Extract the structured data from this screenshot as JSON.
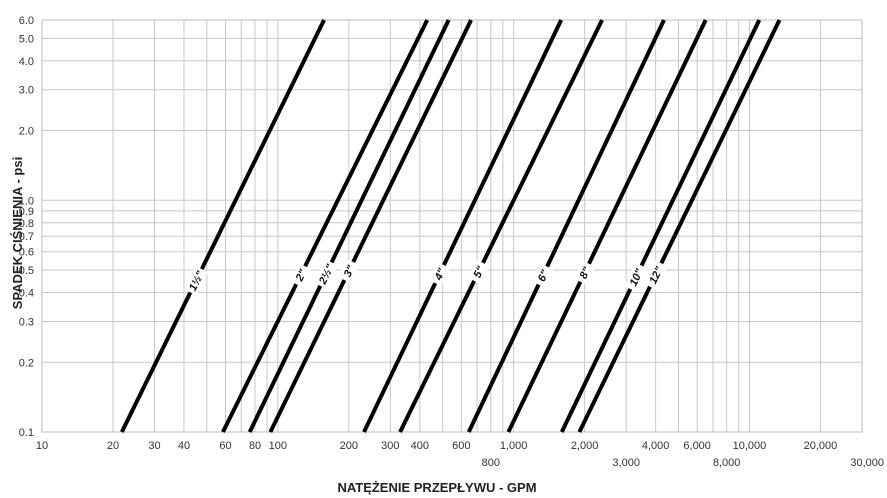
{
  "chart_data": {
    "type": "line",
    "title": "",
    "xlabel": "NATĘŻENIE PRZEPŁYWU - GPM",
    "ylabel": "SPADEK CIŚNIENIA - psi",
    "x_scale": "log",
    "y_scale": "log",
    "xlim": [
      10,
      30000
    ],
    "ylim": [
      0.1,
      6
    ],
    "grid": true,
    "legend": "none",
    "x_ticks_upper": [
      "10",
      "20",
      "30",
      "40",
      "60",
      "80",
      "100",
      "200",
      "300",
      "400",
      "600",
      "1,000",
      "2,000",
      "4,000",
      "6,000",
      "10,000",
      "20,000"
    ],
    "x_ticks_upper_values": [
      10,
      20,
      30,
      40,
      60,
      80,
      100,
      200,
      300,
      400,
      600,
      1000,
      2000,
      4000,
      6000,
      10000,
      20000
    ],
    "x_ticks_lower": [
      "800",
      "3,000",
      "8,000",
      "30,000"
    ],
    "x_ticks_lower_values": [
      800,
      3000,
      8000,
      30000
    ],
    "y_ticks": [
      "0.1",
      "0.2",
      "0.3",
      "0.4",
      "0.5",
      "0.6",
      "0.7",
      "0.8",
      "0.9",
      "1.0",
      "2.0",
      "3.0",
      "4.0",
      "5.0",
      "6.0"
    ],
    "y_ticks_values": [
      0.1,
      0.2,
      0.3,
      0.4,
      0.5,
      0.6,
      0.7,
      0.8,
      0.9,
      1.0,
      2.0,
      3.0,
      4.0,
      5.0,
      6.0
    ],
    "x_gridlines": [
      20,
      30,
      40,
      50,
      60,
      70,
      80,
      90,
      100,
      200,
      300,
      400,
      500,
      600,
      700,
      800,
      900,
      1000,
      2000,
      3000,
      4000,
      5000,
      6000,
      7000,
      8000,
      9000,
      10000,
      20000
    ],
    "y_gridlines": [
      0.2,
      0.3,
      0.4,
      0.5,
      0.6,
      0.7,
      0.8,
      0.9,
      1.0,
      2.0,
      3.0,
      4.0,
      5.0
    ],
    "series": [
      {
        "name": "1½\"",
        "x": [
          21.8,
          157
        ],
        "y": [
          0.1,
          6.0
        ],
        "label_at": 45
      },
      {
        "name": "2\"",
        "x": [
          58.5,
          430
        ],
        "y": [
          0.1,
          6.0
        ],
        "label_at": 125
      },
      {
        "name": "2½\"",
        "x": [
          76,
          530
        ],
        "y": [
          0.1,
          6.0
        ],
        "label_at": 160
      },
      {
        "name": "3\"",
        "x": [
          93,
          660
        ],
        "y": [
          0.1,
          6.0
        ],
        "label_at": 200
      },
      {
        "name": "4\"",
        "x": [
          232,
          1590
        ],
        "y": [
          0.1,
          6.0
        ],
        "label_at": 485
      },
      {
        "name": "5\"",
        "x": [
          330,
          2370
        ],
        "y": [
          0.1,
          6.0
        ],
        "label_at": 710
      },
      {
        "name": "6\"",
        "x": [
          645,
          4340
        ],
        "y": [
          0.1,
          6.0
        ],
        "label_at": 1330
      },
      {
        "name": "8\"",
        "x": [
          950,
          6520
        ],
        "y": [
          0.1,
          6.0
        ],
        "label_at": 2000
      },
      {
        "name": "10\"",
        "x": [
          1600,
          11000
        ],
        "y": [
          0.1,
          6.0
        ],
        "label_at": 3300
      },
      {
        "name": "12\"",
        "x": [
          1900,
          13400
        ],
        "y": [
          0.1,
          6.0
        ],
        "label_at": 4000
      }
    ]
  },
  "colors": {
    "line": "#000000",
    "grid": "#c8c8c8",
    "label_bg": "#ffffff"
  }
}
